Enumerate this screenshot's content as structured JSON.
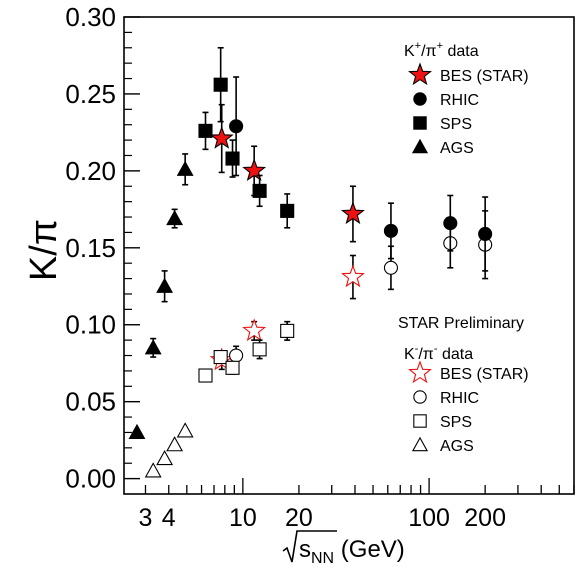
{
  "chart_data": {
    "type": "scatter",
    "xlabel": "√s_NN (GeV)",
    "xlabel_base": "s",
    "xlabel_sub": "NN",
    "xlabel_unit": " (GeV)",
    "ylabel": "K/π",
    "x_scale": "log",
    "xlim": [
      2.3,
      600
    ],
    "ylim": [
      -0.01,
      0.3
    ],
    "grid": false,
    "y_ticks": [
      {
        "value": 0.0,
        "label": "0.00"
      },
      {
        "value": 0.05,
        "label": "0.05"
      },
      {
        "value": 0.1,
        "label": "0.10"
      },
      {
        "value": 0.15,
        "label": "0.15"
      },
      {
        "value": 0.2,
        "label": "0.20"
      },
      {
        "value": 0.25,
        "label": "0.25"
      },
      {
        "value": 0.3,
        "label": "0.30"
      }
    ],
    "x_ticks": [
      {
        "value": 3,
        "label": "3"
      },
      {
        "value": 4,
        "label": "4"
      },
      {
        "value": 10,
        "label": "10"
      },
      {
        "value": 20,
        "label": "20"
      },
      {
        "value": 100,
        "label": "100"
      },
      {
        "value": 200,
        "label": "200"
      }
    ],
    "legends": [
      {
        "placement": "top-right",
        "header_base": "K",
        "header_sup1": "+",
        "header_slash": "/π",
        "header_sup2": "+",
        "header_tail": " data",
        "entries": [
          {
            "label": "BES (STAR)",
            "marker": "star",
            "fill": "#ee1111"
          },
          {
            "label": "RHIC",
            "marker": "circle",
            "fill": "#000000"
          },
          {
            "label": "SPS",
            "marker": "square",
            "fill": "#000000"
          },
          {
            "label": "AGS",
            "marker": "triangle",
            "fill": "#000000"
          }
        ]
      },
      {
        "placement": "bottom-right",
        "title": "STAR Preliminary",
        "header_base": "K",
        "header_sup1": "-",
        "header_slash": "/π",
        "header_sup2": "-",
        "header_tail": " data",
        "entries": [
          {
            "label": "BES (STAR)",
            "marker": "star",
            "fill": "none"
          },
          {
            "label": "RHIC",
            "marker": "circle",
            "fill": "none"
          },
          {
            "label": "SPS",
            "marker": "square",
            "fill": "none"
          },
          {
            "label": "AGS",
            "marker": "triangle",
            "fill": "none"
          }
        ]
      }
    ],
    "series": [
      {
        "name": "K+/π+ BES (STAR)",
        "marker": "star",
        "fill": "#ee1111",
        "stroke": "#000000",
        "points": [
          {
            "x": 7.7,
            "y": 0.221,
            "err": 0.022
          },
          {
            "x": 11.5,
            "y": 0.2,
            "err": 0.016
          },
          {
            "x": 39,
            "y": 0.172,
            "err": 0.018
          }
        ]
      },
      {
        "name": "K+/π+ RHIC",
        "marker": "circle",
        "fill": "#000000",
        "stroke": "#000000",
        "points": [
          {
            "x": 9.2,
            "y": 0.229,
            "err": 0.032
          },
          {
            "x": 62.4,
            "y": 0.161,
            "err": 0.018
          },
          {
            "x": 130,
            "y": 0.166,
            "err": 0.018
          },
          {
            "x": 200,
            "y": 0.159,
            "err": 0.024
          }
        ]
      },
      {
        "name": "K+/π+ SPS",
        "marker": "square",
        "fill": "#000000",
        "stroke": "#000000",
        "points": [
          {
            "x": 6.3,
            "y": 0.226,
            "err": 0.012
          },
          {
            "x": 7.6,
            "y": 0.256,
            "err": 0.024
          },
          {
            "x": 8.8,
            "y": 0.208,
            "err": 0.012
          },
          {
            "x": 12.3,
            "y": 0.187,
            "err": 0.01
          },
          {
            "x": 17.3,
            "y": 0.174,
            "err": 0.011
          }
        ]
      },
      {
        "name": "K+/π+ AGS",
        "marker": "triangle",
        "fill": "#000000",
        "stroke": "#000000",
        "points": [
          {
            "x": 2.7,
            "y": 0.03,
            "err": 0
          },
          {
            "x": 3.3,
            "y": 0.085,
            "err": 0.006
          },
          {
            "x": 3.8,
            "y": 0.125,
            "err": 0.01
          },
          {
            "x": 4.3,
            "y": 0.169,
            "err": 0.006
          },
          {
            "x": 4.9,
            "y": 0.201,
            "err": 0.01
          }
        ]
      },
      {
        "name": "K-/π- BES (STAR)",
        "marker": "star",
        "fill": "none",
        "stroke": "#ee1111",
        "points": [
          {
            "x": 7.7,
            "y": 0.077,
            "err": 0.006
          },
          {
            "x": 11.5,
            "y": 0.096,
            "err": 0.006
          },
          {
            "x": 39,
            "y": 0.131,
            "err": 0.014
          }
        ]
      },
      {
        "name": "K-/π- RHIC",
        "marker": "circle",
        "fill": "none",
        "stroke": "#000000",
        "points": [
          {
            "x": 9.2,
            "y": 0.08,
            "err": 0.006
          },
          {
            "x": 62.4,
            "y": 0.137,
            "err": 0.014
          },
          {
            "x": 130,
            "y": 0.153,
            "err": 0.016
          },
          {
            "x": 200,
            "y": 0.152,
            "err": 0.022
          }
        ]
      },
      {
        "name": "K-/π- SPS",
        "marker": "square",
        "fill": "none",
        "stroke": "#000000",
        "points": [
          {
            "x": 6.3,
            "y": 0.067,
            "err": 0
          },
          {
            "x": 7.6,
            "y": 0.079,
            "err": 0.004
          },
          {
            "x": 8.8,
            "y": 0.072,
            "err": 0.004
          },
          {
            "x": 12.3,
            "y": 0.084,
            "err": 0.006
          },
          {
            "x": 17.3,
            "y": 0.096,
            "err": 0.006
          }
        ]
      },
      {
        "name": "K-/π- AGS",
        "marker": "triangle",
        "fill": "none",
        "stroke": "#000000",
        "points": [
          {
            "x": 3.3,
            "y": 0.005,
            "err": 0
          },
          {
            "x": 3.8,
            "y": 0.013,
            "err": 0
          },
          {
            "x": 4.3,
            "y": 0.022,
            "err": 0
          },
          {
            "x": 4.9,
            "y": 0.031,
            "err": 0
          }
        ]
      }
    ]
  }
}
